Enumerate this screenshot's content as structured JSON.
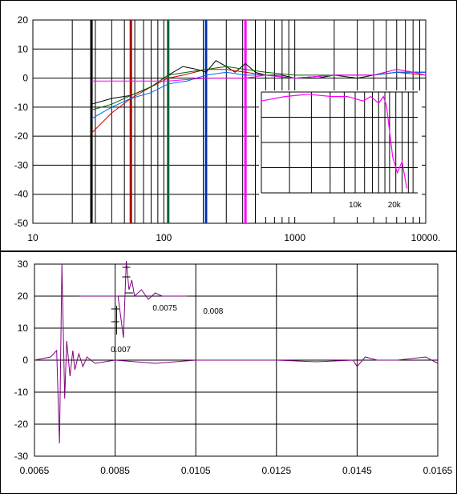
{
  "chart_data": [
    {
      "type": "line",
      "title": "",
      "xlabel": "",
      "ylabel": "",
      "x_scale": "log",
      "xlim": [
        10,
        10000
      ],
      "ylim": [
        -50,
        20
      ],
      "x_tick_labels": [
        "10",
        "100",
        "1000",
        "10000."
      ],
      "y_tick_labels": [
        "20",
        "10",
        "0",
        "-10",
        "-20",
        "-30",
        "-40",
        "-50"
      ],
      "x_ticks": [
        10,
        100,
        1000,
        10000
      ],
      "y_ticks": [
        20,
        10,
        0,
        -10,
        -20,
        -30,
        -40,
        -50
      ],
      "grid": true,
      "marker_lines": [
        {
          "x": 28,
          "color": "#000000"
        },
        {
          "x": 56,
          "color": "#aa0000"
        },
        {
          "x": 108,
          "color": "#006633"
        },
        {
          "x": 210,
          "color": "#0033aa"
        },
        {
          "x": 420,
          "color": "#ff00ff"
        }
      ],
      "series": [
        {
          "color": "#000000",
          "points": [
            [
              28,
              -9
            ],
            [
              40,
              -7
            ],
            [
              56,
              -6
            ],
            [
              80,
              -3
            ],
            [
              108,
              1
            ],
            [
              140,
              4
            ],
            [
              180,
              3
            ],
            [
              210,
              2
            ],
            [
              250,
              6
            ],
            [
              300,
              4
            ],
            [
              350,
              2
            ],
            [
              420,
              5
            ],
            [
              500,
              2
            ],
            [
              600,
              1
            ],
            [
              800,
              1
            ],
            [
              1000,
              0
            ],
            [
              1500,
              0
            ],
            [
              2000,
              1
            ],
            [
              3000,
              0
            ],
            [
              4000,
              1
            ],
            [
              6000,
              3
            ],
            [
              8000,
              2
            ],
            [
              10000,
              2
            ]
          ]
        },
        {
          "color": "#cc0000",
          "points": [
            [
              28,
              -19
            ],
            [
              40,
              -12
            ],
            [
              56,
              -7
            ],
            [
              80,
              -3
            ],
            [
              108,
              0
            ],
            [
              140,
              1
            ],
            [
              210,
              3
            ],
            [
              300,
              3
            ],
            [
              420,
              2
            ],
            [
              600,
              1
            ],
            [
              1000,
              0
            ],
            [
              2000,
              1
            ],
            [
              4000,
              1
            ],
            [
              6000,
              2
            ],
            [
              10000,
              1
            ]
          ]
        },
        {
          "color": "#006600",
          "points": [
            [
              28,
              -11
            ],
            [
              40,
              -9
            ],
            [
              56,
              -6
            ],
            [
              80,
              -3
            ],
            [
              108,
              1
            ],
            [
              150,
              2
            ],
            [
              210,
              3
            ],
            [
              300,
              4
            ],
            [
              420,
              3
            ],
            [
              600,
              2
            ],
            [
              1000,
              1
            ],
            [
              2000,
              1
            ],
            [
              4000,
              1
            ],
            [
              6000,
              2
            ],
            [
              10000,
              2
            ]
          ]
        },
        {
          "color": "#0066ff",
          "points": [
            [
              28,
              -14
            ],
            [
              40,
              -10
            ],
            [
              56,
              -7
            ],
            [
              80,
              -5
            ],
            [
              108,
              -2
            ],
            [
              150,
              -1
            ],
            [
              210,
              1
            ],
            [
              300,
              2
            ],
            [
              420,
              1
            ],
            [
              600,
              1
            ],
            [
              1000,
              0
            ],
            [
              2000,
              1
            ],
            [
              4000,
              1
            ],
            [
              6000,
              2
            ],
            [
              10000,
              2
            ]
          ]
        },
        {
          "color": "#ff00ff",
          "points": [
            [
              28,
              -1
            ],
            [
              56,
              -1
            ],
            [
              108,
              -1
            ],
            [
              210,
              0
            ],
            [
              420,
              0
            ],
            [
              600,
              1
            ],
            [
              1000,
              0
            ],
            [
              2000,
              1
            ],
            [
              4000,
              1
            ],
            [
              6000,
              3
            ],
            [
              8000,
              2
            ],
            [
              10000,
              1
            ]
          ]
        }
      ],
      "inset": {
        "x_tick_labels": [
          "10k",
          "20k"
        ],
        "series": {
          "color": "#ff00ff",
          "points": [
            [
              0,
              -1
            ],
            [
              0.15,
              1
            ],
            [
              0.3,
              2
            ],
            [
              0.45,
              1
            ],
            [
              0.55,
              1
            ],
            [
              0.65,
              -1
            ],
            [
              0.7,
              1
            ],
            [
              0.75,
              -2
            ],
            [
              0.78,
              1
            ],
            [
              0.8,
              -3
            ],
            [
              0.84,
              -26
            ],
            [
              0.87,
              -33
            ],
            [
              0.9,
              -28
            ],
            [
              0.93,
              -40
            ]
          ]
        }
      }
    },
    {
      "type": "line",
      "title": "",
      "xlabel": "",
      "ylabel": "",
      "xlim": [
        0.0065,
        0.0165
      ],
      "ylim": [
        -30,
        30
      ],
      "x_tick_labels": [
        "0.0065",
        "0.0085",
        "0.0105",
        "0.0125",
        "0.0145",
        "0.0165"
      ],
      "y_tick_labels": [
        "30",
        "20",
        "10",
        "0",
        "-10",
        "-20",
        "-30"
      ],
      "x_ticks": [
        0.0065,
        0.0085,
        0.0105,
        0.0125,
        0.0145,
        0.0165
      ],
      "y_ticks": [
        30,
        20,
        10,
        0,
        -10,
        -20,
        -30
      ],
      "grid": true,
      "series": [
        {
          "color": "#800080",
          "points": [
            [
              0.0065,
              0
            ],
            [
              0.0069,
              1
            ],
            [
              0.00705,
              3
            ],
            [
              0.00712,
              -26
            ],
            [
              0.00718,
              30
            ],
            [
              0.00725,
              -12
            ],
            [
              0.0073,
              6
            ],
            [
              0.00738,
              -5
            ],
            [
              0.00745,
              3
            ],
            [
              0.0075,
              -3
            ],
            [
              0.0076,
              2
            ],
            [
              0.0077,
              -2
            ],
            [
              0.0078,
              1
            ],
            [
              0.008,
              -1
            ],
            [
              0.0085,
              0
            ],
            [
              0.0095,
              -1
            ],
            [
              0.0105,
              0
            ],
            [
              0.0125,
              0
            ],
            [
              0.0135,
              -0.5
            ],
            [
              0.0144,
              0
            ],
            [
              0.0145,
              -2
            ],
            [
              0.0147,
              1
            ],
            [
              0.015,
              0
            ],
            [
              0.0155,
              0
            ],
            [
              0.0162,
              1
            ],
            [
              0.0165,
              -1
            ]
          ]
        }
      ],
      "inset": {
        "labels": [
          "0.007",
          "0.0075",
          "0.008"
        ],
        "series": {
          "color": "#800080",
          "points": [
            [
              0,
              20
            ],
            [
              0.28,
              20
            ],
            [
              0.32,
              7
            ],
            [
              0.34,
              31
            ],
            [
              0.36,
              22
            ],
            [
              0.38,
              25
            ],
            [
              0.4,
              20
            ],
            [
              0.45,
              22
            ],
            [
              0.5,
              19
            ],
            [
              0.55,
              21
            ],
            [
              0.6,
              20
            ],
            [
              0.7,
              20
            ],
            [
              0.78,
              20
            ]
          ]
        }
      }
    }
  ]
}
